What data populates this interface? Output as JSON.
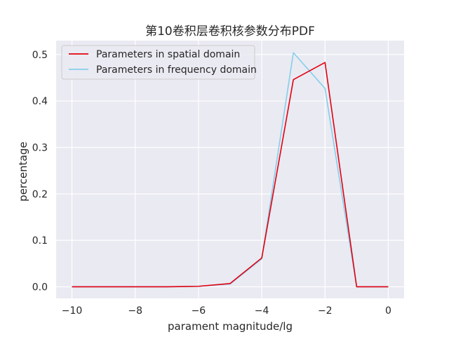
{
  "chart_data": {
    "type": "line",
    "title": "第10卷积层卷积核参数分布PDF",
    "xlabel": "parament magnitude/lg",
    "ylabel": "percentage",
    "xlim": [
      -10.5,
      0.5
    ],
    "ylim": [
      -0.025,
      0.53
    ],
    "xticks": [
      -10,
      -8,
      -6,
      -4,
      -2,
      0
    ],
    "xtick_labels": [
      "−10",
      "−8",
      "−6",
      "−4",
      "−2",
      "0"
    ],
    "yticks": [
      0.0,
      0.1,
      0.2,
      0.3,
      0.4,
      0.5
    ],
    "ytick_labels": [
      "0.0",
      "0.1",
      "0.2",
      "0.3",
      "0.4",
      "0.5"
    ],
    "grid": true,
    "legend_position": "top-left",
    "x": [
      -10,
      -9,
      -8,
      -7,
      -6,
      -5,
      -4,
      -3,
      -2,
      -1,
      0
    ],
    "series": [
      {
        "name": "Parameters in spatial domain",
        "color": "#e3000f",
        "values": [
          0.0,
          0.0,
          0.0,
          0.0,
          0.001,
          0.007,
          0.062,
          0.446,
          0.483,
          0.0,
          0.0
        ]
      },
      {
        "name": "Parameters in frequency domain",
        "color": "#87ceeb",
        "values": [
          0.0,
          0.0,
          0.0,
          0.0,
          0.001,
          0.006,
          0.06,
          0.504,
          0.427,
          0.0,
          0.0
        ]
      }
    ],
    "colors": {
      "axes_background": "#eaeaf2",
      "grid": "#ffffff"
    }
  }
}
